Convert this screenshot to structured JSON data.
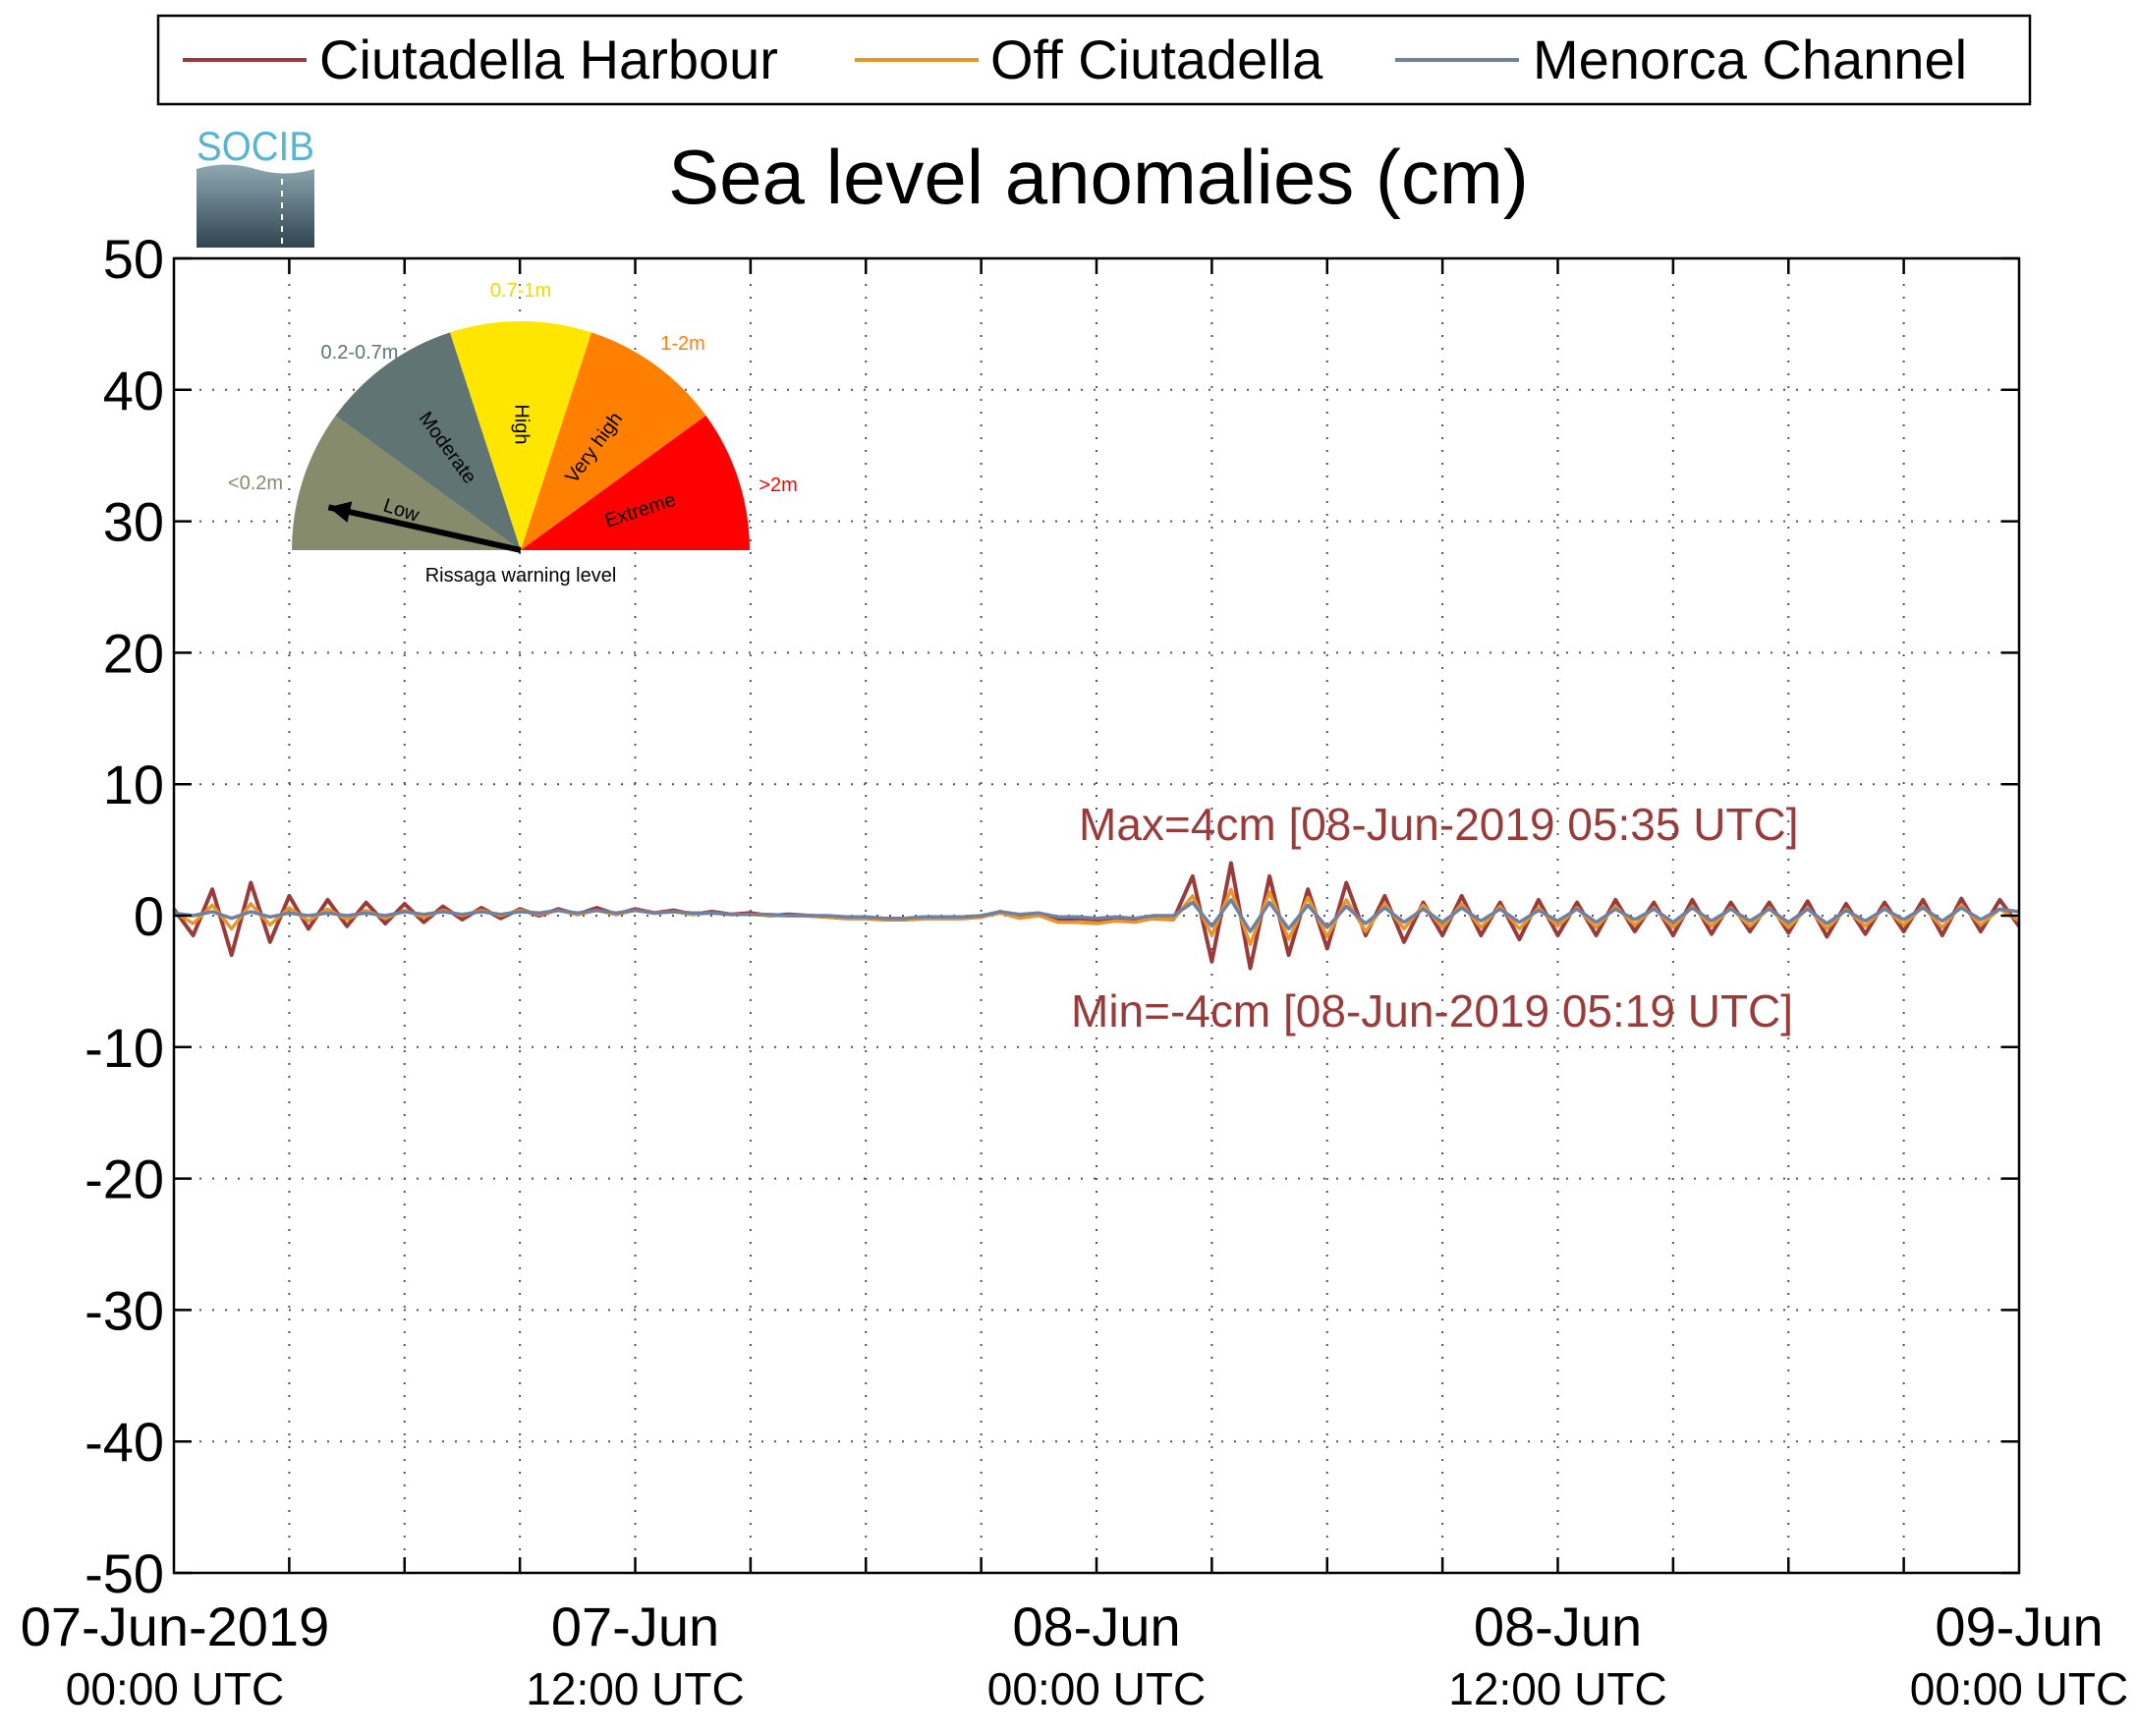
{
  "chart_data": {
    "type": "line",
    "title": "Sea level anomalies (cm)",
    "ylim": [
      -50,
      50
    ],
    "yticks": [
      "50",
      "40",
      "30",
      "20",
      "10",
      "0",
      "-10",
      "-20",
      "-30",
      "-40",
      "-50"
    ],
    "xlim_hours": [
      0,
      48
    ],
    "xticks": [
      {
        "date": "07-Jun-2019",
        "time": "00:00 UTC"
      },
      {
        "date": "07-Jun",
        "time": "12:00 UTC"
      },
      {
        "date": "08-Jun",
        "time": "00:00 UTC"
      },
      {
        "date": "08-Jun",
        "time": "12:00 UTC"
      },
      {
        "date": "09-Jun",
        "time": "00:00 UTC"
      }
    ],
    "grid": true,
    "legend_position": "top",
    "series": [
      {
        "name": "Ciutadella Harbour",
        "color": "#9a3b3b",
        "x_hours": [
          0,
          0.5,
          1,
          1.5,
          2,
          2.5,
          3,
          3.5,
          4,
          4.5,
          5,
          5.5,
          6,
          6.5,
          7,
          7.5,
          8,
          8.5,
          9,
          9.5,
          10,
          10.5,
          11,
          11.5,
          12,
          12.5,
          13,
          13.5,
          14,
          14.5,
          15,
          15.5,
          16,
          16.5,
          17,
          17.5,
          18,
          18.5,
          19,
          19.5,
          20,
          20.5,
          21,
          21.5,
          22,
          22.5,
          23,
          23.5,
          24,
          24.5,
          25,
          25.5,
          26,
          26.5,
          27,
          27.5,
          28,
          28.5,
          29,
          29.5,
          30,
          30.5,
          31,
          31.5,
          32,
          32.5,
          33,
          33.5,
          34,
          34.5,
          35,
          35.5,
          36,
          36.5,
          37,
          37.5,
          38,
          38.5,
          39,
          39.5,
          40,
          40.5,
          41,
          41.5,
          42,
          42.5,
          43,
          43.5,
          44,
          44.5,
          45,
          45.5,
          46,
          46.5,
          47,
          47.5,
          48
        ],
        "values": [
          0.5,
          -1.5,
          2,
          -3,
          2.5,
          -2,
          1.5,
          -1,
          1.2,
          -0.8,
          1,
          -0.6,
          0.9,
          -0.5,
          0.7,
          -0.3,
          0.6,
          -0.2,
          0.5,
          0,
          0.5,
          0.1,
          0.6,
          0.1,
          0.5,
          0.2,
          0.4,
          0.1,
          0.3,
          0.1,
          0.2,
          0,
          0.1,
          0,
          -0.1,
          -0.2,
          -0.2,
          -0.3,
          -0.3,
          -0.2,
          -0.2,
          -0.2,
          -0.1,
          0.3,
          -0.1,
          0.1,
          -0.3,
          -0.2,
          -0.3,
          -0.3,
          -0.4,
          -0.2,
          -0.3,
          3,
          -3.5,
          4,
          -4,
          3,
          -3,
          2,
          -2.5,
          2.5,
          -1.5,
          1.5,
          -2,
          1,
          -1.5,
          1.5,
          -1.5,
          1,
          -1.8,
          1.2,
          -1.5,
          1,
          -1.5,
          1.2,
          -1.2,
          1,
          -1.5,
          1.2,
          -1.4,
          1,
          -1.2,
          1,
          -1.3,
          1.1,
          -1.6,
          0.9,
          -1.4,
          1,
          -1.2,
          1.2,
          -1.5,
          1.3,
          -1.2,
          1.2,
          -0.8
        ]
      },
      {
        "name": "Off Ciutadella",
        "color": "#e8952b",
        "x_hours": [
          0,
          0.5,
          1,
          1.5,
          2,
          2.5,
          3,
          3.5,
          4,
          4.5,
          5,
          5.5,
          6,
          6.5,
          7,
          7.5,
          8,
          8.5,
          9,
          9.5,
          10,
          10.5,
          11,
          11.5,
          12,
          12.5,
          13,
          13.5,
          14,
          14.5,
          15,
          15.5,
          16,
          16.5,
          17,
          17.5,
          18,
          18.5,
          19,
          19.5,
          20,
          20.5,
          21,
          21.5,
          22,
          22.5,
          23,
          23.5,
          24,
          24.5,
          25,
          25.5,
          26,
          26.5,
          27,
          27.5,
          28,
          28.5,
          29,
          29.5,
          30,
          30.5,
          31,
          31.5,
          32,
          32.5,
          33,
          33.5,
          34,
          34.5,
          35,
          35.5,
          36,
          36.5,
          37,
          37.5,
          38,
          38.5,
          39,
          39.5,
          40,
          40.5,
          41,
          41.5,
          42,
          42.5,
          43,
          43.5,
          44,
          44.5,
          45,
          45.5,
          46,
          46.5,
          47,
          47.5,
          48
        ],
        "values": [
          0.3,
          -0.6,
          0.8,
          -1,
          0.9,
          -0.7,
          0.6,
          -0.4,
          0.5,
          -0.3,
          0.4,
          -0.2,
          0.4,
          -0.1,
          0.4,
          0,
          0.4,
          0,
          0.4,
          0.1,
          0.4,
          0.1,
          0.4,
          0.1,
          0.4,
          0.2,
          0.3,
          0.1,
          0.2,
          0.1,
          0.1,
          0,
          0,
          0,
          -0.1,
          -0.2,
          -0.2,
          -0.3,
          -0.3,
          -0.2,
          -0.2,
          -0.2,
          -0.1,
          0.2,
          -0.2,
          0,
          -0.5,
          -0.5,
          -0.6,
          -0.4,
          -0.5,
          -0.2,
          -0.3,
          1.5,
          -1.5,
          2,
          -2.2,
          1.8,
          -1.8,
          1.4,
          -1.6,
          1.2,
          -1.2,
          0.9,
          -1,
          0.8,
          -0.9,
          0.9,
          -0.9,
          0.7,
          -1,
          0.6,
          -0.8,
          0.6,
          -0.9,
          0.7,
          -0.7,
          0.6,
          -0.9,
          0.7,
          -0.8,
          0.6,
          -0.8,
          0.6,
          -0.9,
          0.6,
          -1,
          0.5,
          -0.8,
          0.6,
          -0.7,
          0.7,
          -0.9,
          0.8,
          -0.7,
          0.5,
          -0.4
        ]
      },
      {
        "name": "Menorca Channel",
        "color": "#7080a0",
        "x_hours": [
          0,
          0.5,
          1,
          1.5,
          2,
          2.5,
          3,
          3.5,
          4,
          4.5,
          5,
          5.5,
          6,
          6.5,
          7,
          7.5,
          8,
          8.5,
          9,
          9.5,
          10,
          10.5,
          11,
          11.5,
          12,
          12.5,
          13,
          13.5,
          14,
          14.5,
          15,
          15.5,
          16,
          16.5,
          17,
          17.5,
          18,
          18.5,
          19,
          19.5,
          20,
          20.5,
          21,
          21.5,
          22,
          22.5,
          23,
          23.5,
          24,
          24.5,
          25,
          25.5,
          26,
          26.5,
          27,
          27.5,
          28,
          28.5,
          29,
          29.5,
          30,
          30.5,
          31,
          31.5,
          32,
          32.5,
          33,
          33.5,
          34,
          34.5,
          35,
          35.5,
          36,
          36.5,
          37,
          37.5,
          38,
          38.5,
          39,
          39.5,
          40,
          40.5,
          41,
          41.5,
          42,
          42.5,
          43,
          43.5,
          44,
          44.5,
          45,
          45.5,
          46,
          46.5,
          47,
          47.5,
          48
        ],
        "values": [
          0.2,
          0,
          0.3,
          -0.2,
          0.3,
          -0.1,
          0.2,
          0,
          0.2,
          0,
          0.2,
          0,
          0.3,
          0.1,
          0.3,
          0.1,
          0.3,
          0.1,
          0.3,
          0.2,
          0.4,
          0.2,
          0.4,
          0.2,
          0.4,
          0.2,
          0.3,
          0.2,
          0.2,
          0.1,
          0.1,
          0.1,
          0,
          0,
          0,
          -0.1,
          -0.1,
          -0.2,
          -0.2,
          -0.1,
          -0.1,
          -0.1,
          0,
          0.3,
          0.1,
          0.2,
          -0.1,
          -0.1,
          -0.2,
          -0.1,
          -0.2,
          0,
          0,
          1,
          -0.8,
          1.2,
          -1.2,
          1,
          -1,
          0.8,
          -0.9,
          0.7,
          -0.6,
          0.6,
          -0.5,
          0.5,
          -0.5,
          0.6,
          -0.4,
          0.5,
          -0.5,
          0.4,
          -0.4,
          0.5,
          -0.5,
          0.5,
          -0.3,
          0.5,
          -0.5,
          0.6,
          -0.4,
          0.5,
          -0.4,
          0.5,
          -0.5,
          0.5,
          -0.6,
          0.4,
          -0.4,
          0.5,
          -0.3,
          0.6,
          -0.4,
          0.6,
          -0.3,
          0.5,
          0.3
        ]
      }
    ],
    "annotations": {
      "max_text": "Max=4cm [08-Jun-2019 05:35 UTC]",
      "min_text": "Min=-4cm [08-Jun-2019 05:19 UTC]",
      "color": "#9a3b3b"
    }
  },
  "logo": {
    "text": "SOCIB"
  },
  "gauge": {
    "caption": "Rissaga warning level",
    "needle_level": "Low",
    "segments": [
      {
        "label": "Low",
        "range": "<0.2m",
        "color": "#868b6b",
        "range_color": "#868b6b"
      },
      {
        "label": "Moderate",
        "range": "0.2-0.7m",
        "color": "#5f7473",
        "range_color": "#5f7473"
      },
      {
        "label": "High",
        "range": "0.7-1m",
        "color": "#ffe600",
        "range_color": "#f2d800"
      },
      {
        "label": "Very high",
        "range": "1-2m",
        "color": "#ff8000",
        "range_color": "#ff8000"
      },
      {
        "label": "Extreme",
        "range": ">2m",
        "color": "#ff0000",
        "range_color": "#ff0000"
      }
    ]
  }
}
